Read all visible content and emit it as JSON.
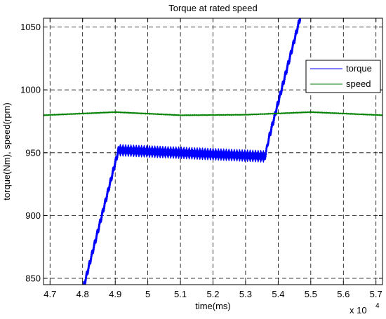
{
  "chart_data": {
    "type": "line",
    "title": "Torque at rated speed",
    "xlabel": "time(ms)",
    "ylabel": "torque(Nm), speed(rpm)",
    "x_multiplier": "x 10",
    "x_multiplier_exponent": "4",
    "xlim": [
      4.68,
      5.72
    ],
    "ylim": [
      845,
      1057
    ],
    "x_ticks": [
      4.7,
      4.8,
      4.9,
      5.0,
      5.1,
      5.2,
      5.3,
      5.4,
      5.5,
      5.6,
      5.7
    ],
    "x_tick_labels": [
      "4.7",
      "4.8",
      "4.9",
      "5",
      "5.1",
      "5.2",
      "5.3",
      "5.4",
      "5.5",
      "5.6",
      "5.7"
    ],
    "y_ticks": [
      850,
      900,
      950,
      1000,
      1050
    ],
    "y_tick_labels": [
      "850",
      "900",
      "950",
      "1000",
      "1050"
    ],
    "grid": true,
    "grid_style": "dashed",
    "legend_position": "top-right",
    "series": [
      {
        "name": "torque",
        "color": "#0000ff",
        "ripple_amplitude": 5,
        "x": [
          4.8,
          4.91,
          5.36,
          5.37,
          5.47
        ],
        "values": [
          840,
          952,
          947,
          960,
          1060
        ]
      },
      {
        "name": "speed",
        "color": "#008000",
        "ripple_amplitude": 0.6,
        "x": [
          4.68,
          4.9,
          5.1,
          5.3,
          5.5,
          5.72
        ],
        "values": [
          979.8,
          982.3,
          979.8,
          980.2,
          982.3,
          979.8
        ]
      }
    ]
  }
}
